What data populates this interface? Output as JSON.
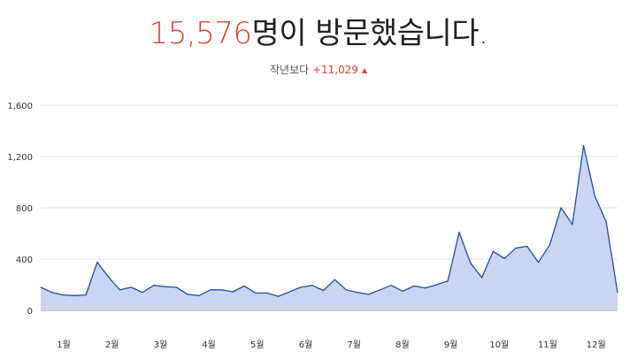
{
  "headline": {
    "count": "15,576",
    "suffix": "명이 방문했습니다."
  },
  "comparison": {
    "label": "작년보다",
    "delta": "+11,029",
    "arrow": "▲"
  },
  "colors": {
    "accent": "#e0402a",
    "line": "#1f4fa8",
    "fill": "#c6d3f0",
    "grid": "#e2e2e2"
  },
  "chart_data": {
    "type": "area",
    "title": "",
    "xlabel": "",
    "ylabel": "",
    "ylim": [
      0,
      1600
    ],
    "yticks": [
      0,
      400,
      800,
      1200,
      1600
    ],
    "ytick_labels": [
      "0",
      "400",
      "800",
      "1,200",
      "1,600"
    ],
    "grid": true,
    "x_tick_labels": [
      "1월",
      "2월",
      "3월",
      "4월",
      "5월",
      "6월",
      "7월",
      "8월",
      "9월",
      "10월",
      "11월",
      "12월"
    ],
    "series": [
      {
        "values": [
          180,
          140,
          120,
          115,
          120,
          375,
          260,
          160,
          180,
          140,
          195,
          185,
          180,
          125,
          115,
          160,
          160,
          145,
          190,
          135,
          135,
          110,
          145,
          180,
          195,
          155,
          240,
          160,
          140,
          125,
          160,
          195,
          150,
          190,
          175,
          200,
          230,
          610,
          370,
          255,
          460,
          405,
          485,
          500,
          375,
          510,
          800,
          670,
          1285,
          890,
          690,
          140
        ]
      }
    ]
  }
}
